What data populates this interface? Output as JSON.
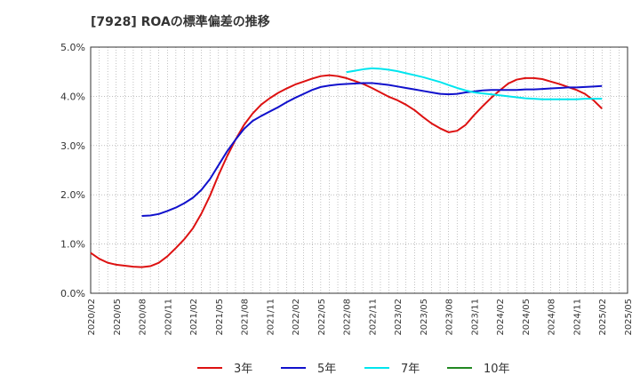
{
  "title": "[7928]  ROAの標準偏差の推移",
  "chart_data": {
    "type": "line",
    "title": "[7928]  ROAの標準偏差の推移",
    "xlabel": "",
    "ylabel": "",
    "ylim": [
      0,
      5
    ],
    "yticks": [
      "0.0%",
      "1.0%",
      "2.0%",
      "3.0%",
      "4.0%",
      "5.0%"
    ],
    "xticks": [
      "2020/02",
      "2020/05",
      "2020/08",
      "2020/11",
      "2021/02",
      "2021/05",
      "2021/08",
      "2021/11",
      "2022/02",
      "2022/05",
      "2022/08",
      "2022/11",
      "2023/02",
      "2023/05",
      "2023/08",
      "2023/11",
      "2024/02",
      "2024/05",
      "2024/08",
      "2024/11",
      "2025/02",
      "2025/05"
    ],
    "grid": true,
    "legend_position": "bottom",
    "series": [
      {
        "name": "3年",
        "color": "#dd1111",
        "points": [
          [
            "2020/02",
            0.82
          ],
          [
            "2020/03",
            0.7
          ],
          [
            "2020/04",
            0.62
          ],
          [
            "2020/05",
            0.58
          ],
          [
            "2020/06",
            0.56
          ],
          [
            "2020/07",
            0.54
          ],
          [
            "2020/08",
            0.53
          ],
          [
            "2020/09",
            0.55
          ],
          [
            "2020/10",
            0.62
          ],
          [
            "2020/11",
            0.75
          ],
          [
            "2020/12",
            0.92
          ],
          [
            "2021/01",
            1.1
          ],
          [
            "2021/02",
            1.32
          ],
          [
            "2021/03",
            1.62
          ],
          [
            "2021/04",
            1.98
          ],
          [
            "2021/05",
            2.4
          ],
          [
            "2021/06",
            2.78
          ],
          [
            "2021/07",
            3.12
          ],
          [
            "2021/08",
            3.42
          ],
          [
            "2021/09",
            3.65
          ],
          [
            "2021/10",
            3.83
          ],
          [
            "2021/11",
            3.96
          ],
          [
            "2021/12",
            4.07
          ],
          [
            "2022/01",
            4.16
          ],
          [
            "2022/02",
            4.24
          ],
          [
            "2022/03",
            4.3
          ],
          [
            "2022/04",
            4.36
          ],
          [
            "2022/05",
            4.41
          ],
          [
            "2022/06",
            4.43
          ],
          [
            "2022/07",
            4.41
          ],
          [
            "2022/08",
            4.37
          ],
          [
            "2022/09",
            4.31
          ],
          [
            "2022/10",
            4.25
          ],
          [
            "2022/11",
            4.17
          ],
          [
            "2022/12",
            4.08
          ],
          [
            "2023/01",
            3.99
          ],
          [
            "2023/02",
            3.92
          ],
          [
            "2023/03",
            3.83
          ],
          [
            "2023/04",
            3.72
          ],
          [
            "2023/05",
            3.58
          ],
          [
            "2023/06",
            3.45
          ],
          [
            "2023/07",
            3.35
          ],
          [
            "2023/08",
            3.27
          ],
          [
            "2023/09",
            3.3
          ],
          [
            "2023/10",
            3.42
          ],
          [
            "2023/11",
            3.62
          ],
          [
            "2023/12",
            3.8
          ],
          [
            "2024/01",
            3.97
          ],
          [
            "2024/02",
            4.12
          ],
          [
            "2024/03",
            4.26
          ],
          [
            "2024/04",
            4.34
          ],
          [
            "2024/05",
            4.37
          ],
          [
            "2024/06",
            4.37
          ],
          [
            "2024/07",
            4.35
          ],
          [
            "2024/08",
            4.3
          ],
          [
            "2024/09",
            4.25
          ],
          [
            "2024/10",
            4.19
          ],
          [
            "2024/11",
            4.13
          ],
          [
            "2024/12",
            4.05
          ],
          [
            "2025/01",
            3.92
          ],
          [
            "2025/02",
            3.75
          ]
        ]
      },
      {
        "name": "5年",
        "color": "#1111cc",
        "points": [
          [
            "2020/08",
            1.57
          ],
          [
            "2020/09",
            1.58
          ],
          [
            "2020/10",
            1.61
          ],
          [
            "2020/11",
            1.67
          ],
          [
            "2020/12",
            1.74
          ],
          [
            "2021/01",
            1.83
          ],
          [
            "2021/02",
            1.94
          ],
          [
            "2021/03",
            2.1
          ],
          [
            "2021/04",
            2.32
          ],
          [
            "2021/05",
            2.6
          ],
          [
            "2021/06",
            2.88
          ],
          [
            "2021/07",
            3.12
          ],
          [
            "2021/08",
            3.34
          ],
          [
            "2021/09",
            3.5
          ],
          [
            "2021/10",
            3.6
          ],
          [
            "2021/11",
            3.69
          ],
          [
            "2021/12",
            3.78
          ],
          [
            "2022/01",
            3.88
          ],
          [
            "2022/02",
            3.97
          ],
          [
            "2022/03",
            4.05
          ],
          [
            "2022/04",
            4.13
          ],
          [
            "2022/05",
            4.19
          ],
          [
            "2022/06",
            4.22
          ],
          [
            "2022/07",
            4.24
          ],
          [
            "2022/08",
            4.25
          ],
          [
            "2022/09",
            4.26
          ],
          [
            "2022/10",
            4.27
          ],
          [
            "2022/11",
            4.27
          ],
          [
            "2022/12",
            4.25
          ],
          [
            "2023/01",
            4.23
          ],
          [
            "2023/02",
            4.2
          ],
          [
            "2023/03",
            4.17
          ],
          [
            "2023/04",
            4.14
          ],
          [
            "2023/05",
            4.11
          ],
          [
            "2023/06",
            4.08
          ],
          [
            "2023/07",
            4.05
          ],
          [
            "2023/08",
            4.04
          ],
          [
            "2023/09",
            4.05
          ],
          [
            "2023/10",
            4.08
          ],
          [
            "2023/11",
            4.1
          ],
          [
            "2023/12",
            4.12
          ],
          [
            "2024/01",
            4.13
          ],
          [
            "2024/02",
            4.13
          ],
          [
            "2024/03",
            4.13
          ],
          [
            "2024/04",
            4.13
          ],
          [
            "2024/05",
            4.14
          ],
          [
            "2024/06",
            4.14
          ],
          [
            "2024/07",
            4.15
          ],
          [
            "2024/08",
            4.16
          ],
          [
            "2024/09",
            4.17
          ],
          [
            "2024/10",
            4.18
          ],
          [
            "2024/11",
            4.18
          ],
          [
            "2024/12",
            4.19
          ],
          [
            "2025/01",
            4.2
          ],
          [
            "2025/02",
            4.21
          ]
        ]
      },
      {
        "name": "7年",
        "color": "#00e5ee",
        "points": [
          [
            "2022/08",
            4.49
          ],
          [
            "2022/09",
            4.52
          ],
          [
            "2022/10",
            4.55
          ],
          [
            "2022/11",
            4.57
          ],
          [
            "2022/12",
            4.56
          ],
          [
            "2023/01",
            4.54
          ],
          [
            "2023/02",
            4.51
          ],
          [
            "2023/03",
            4.47
          ],
          [
            "2023/04",
            4.43
          ],
          [
            "2023/05",
            4.39
          ],
          [
            "2023/06",
            4.34
          ],
          [
            "2023/07",
            4.29
          ],
          [
            "2023/08",
            4.23
          ],
          [
            "2023/09",
            4.17
          ],
          [
            "2023/10",
            4.12
          ],
          [
            "2023/11",
            4.08
          ],
          [
            "2023/12",
            4.06
          ],
          [
            "2024/01",
            4.04
          ],
          [
            "2024/02",
            4.02
          ],
          [
            "2024/03",
            4.0
          ],
          [
            "2024/04",
            3.98
          ],
          [
            "2024/05",
            3.96
          ],
          [
            "2024/06",
            3.95
          ],
          [
            "2024/07",
            3.94
          ],
          [
            "2024/08",
            3.94
          ],
          [
            "2024/09",
            3.94
          ],
          [
            "2024/10",
            3.94
          ],
          [
            "2024/11",
            3.94
          ],
          [
            "2024/12",
            3.95
          ],
          [
            "2025/01",
            3.95
          ],
          [
            "2025/02",
            3.95
          ]
        ]
      },
      {
        "name": "10年",
        "color": "#228822",
        "points": []
      }
    ]
  }
}
